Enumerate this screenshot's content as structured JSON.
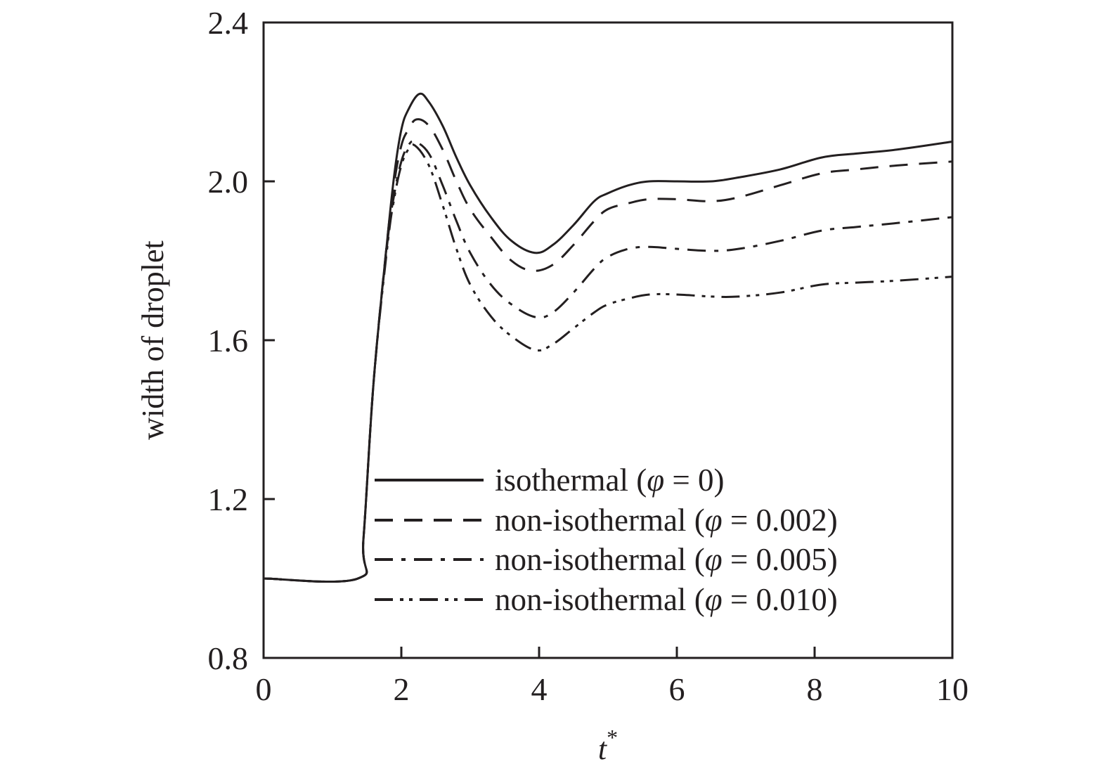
{
  "chart_data": {
    "type": "line",
    "title": "",
    "xlabel": "t*",
    "xlabel_base": "t",
    "xlabel_sup": "*",
    "ylabel": "width of droplet",
    "xlim": [
      0,
      10
    ],
    "ylim": [
      0.8,
      2.4
    ],
    "xticks": [
      0,
      2,
      4,
      6,
      8,
      10
    ],
    "yticks": [
      0.8,
      1.2,
      1.6,
      2.0,
      2.4
    ],
    "xtick_labels": [
      "0",
      "2",
      "4",
      "6",
      "8",
      "10"
    ],
    "ytick_labels": [
      "0.8",
      "1.2",
      "1.6",
      "2.0",
      "2.4"
    ],
    "grid": false,
    "legend_position": "lower center (inside plot)",
    "series": [
      {
        "name": "isothermal (φ = 0)",
        "label_prefix": "isothermal (",
        "phi": "φ",
        "label_suffix": " = 0)",
        "style": "solid",
        "color": "#231f20",
        "x": [
          0,
          1.37,
          1.45,
          1.6,
          1.8,
          1.9,
          2.0,
          2.1,
          2.26,
          2.4,
          2.6,
          2.8,
          3.0,
          3.3,
          3.6,
          3.94,
          4.2,
          4.5,
          4.8,
          5.0,
          5.3,
          5.6,
          6.0,
          6.5,
          6.9,
          7.5,
          8.1,
          8.6,
          9.2,
          10.0
        ],
        "y": [
          1.0,
          1.0,
          1.1,
          1.5,
          1.86,
          2.02,
          2.13,
          2.18,
          2.22,
          2.2,
          2.14,
          2.06,
          1.99,
          1.91,
          1.85,
          1.82,
          1.84,
          1.89,
          1.95,
          1.97,
          1.99,
          2.0,
          2.0,
          2.0,
          2.01,
          2.03,
          2.06,
          2.07,
          2.08,
          2.1
        ]
      },
      {
        "name": "non-isothermal (φ = 0.002)",
        "label_prefix": "non-isothermal (",
        "phi": "φ",
        "label_suffix": " = 0.002)",
        "style": "dashed",
        "color": "#231f20",
        "x": [
          0,
          1.37,
          1.45,
          1.6,
          1.8,
          1.9,
          2.0,
          2.1,
          2.22,
          2.4,
          2.6,
          2.8,
          3.0,
          3.3,
          3.6,
          3.9,
          4.2,
          4.5,
          4.8,
          5.0,
          5.3,
          5.6,
          6.0,
          6.5,
          6.9,
          7.5,
          8.1,
          8.6,
          9.2,
          10.0
        ],
        "y": [
          1.0,
          1.0,
          1.1,
          1.5,
          1.86,
          2.0,
          2.09,
          2.13,
          2.156,
          2.14,
          2.08,
          2.0,
          1.93,
          1.86,
          1.8,
          1.775,
          1.79,
          1.84,
          1.9,
          1.93,
          1.945,
          1.955,
          1.955,
          1.95,
          1.96,
          1.99,
          2.02,
          2.03,
          2.04,
          2.05
        ]
      },
      {
        "name": "non-isothermal (φ = 0.005)",
        "label_prefix": "non-isothermal (",
        "phi": "φ",
        "label_suffix": " = 0.005)",
        "style": "dash-dot",
        "color": "#231f20",
        "x": [
          0,
          1.37,
          1.45,
          1.6,
          1.8,
          1.9,
          2.0,
          2.1,
          2.2,
          2.4,
          2.6,
          2.8,
          3.0,
          3.3,
          3.6,
          3.95,
          4.2,
          4.5,
          4.8,
          5.0,
          5.3,
          5.6,
          6.0,
          6.5,
          6.9,
          7.5,
          8.1,
          8.6,
          9.2,
          10.0
        ],
        "y": [
          1.0,
          1.0,
          1.1,
          1.5,
          1.85,
          1.97,
          2.05,
          2.09,
          2.1,
          2.07,
          1.99,
          1.9,
          1.82,
          1.74,
          1.69,
          1.658,
          1.67,
          1.72,
          1.78,
          1.81,
          1.83,
          1.835,
          1.83,
          1.825,
          1.83,
          1.85,
          1.876,
          1.885,
          1.895,
          1.91
        ]
      },
      {
        "name": "non-isothermal (φ = 0.010)",
        "label_prefix": "non-isothermal (",
        "phi": "φ",
        "label_suffix": " = 0.010)",
        "style": "dash-dot-dot",
        "color": "#231f20",
        "x": [
          0,
          1.37,
          1.45,
          1.6,
          1.8,
          1.9,
          2.0,
          2.1,
          2.2,
          2.4,
          2.6,
          2.8,
          3.0,
          3.3,
          3.6,
          3.95,
          4.2,
          4.5,
          4.8,
          5.0,
          5.3,
          5.6,
          6.0,
          6.5,
          6.9,
          7.5,
          8.1,
          8.6,
          9.2,
          10.0
        ],
        "y": [
          1.0,
          1.0,
          1.1,
          1.5,
          1.84,
          1.96,
          2.04,
          2.08,
          2.09,
          2.04,
          1.94,
          1.83,
          1.74,
          1.66,
          1.61,
          1.575,
          1.59,
          1.63,
          1.67,
          1.69,
          1.705,
          1.715,
          1.715,
          1.71,
          1.71,
          1.72,
          1.74,
          1.745,
          1.75,
          1.76
        ]
      }
    ]
  }
}
